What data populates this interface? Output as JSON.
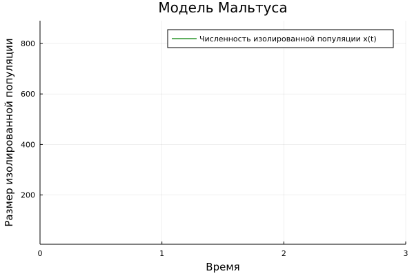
{
  "chart_data": {
    "type": "line",
    "title": "Модель Мальтуса",
    "xlabel": "Время",
    "ylabel": "Размер изолированной популяции",
    "xlim": [
      0,
      3
    ],
    "ylim": [
      5,
      890
    ],
    "x_ticks": [
      0,
      1,
      2,
      3
    ],
    "x_tick_labels": [
      "0",
      "1",
      "2",
      "3"
    ],
    "y_ticks": [
      200,
      400,
      600,
      800
    ],
    "y_tick_labels": [
      "200",
      "400",
      "600",
      "800"
    ],
    "grid": true,
    "legend_position": "top-right",
    "series": [
      {
        "name": "Численность изолированной популяции x(t)",
        "color": "#008000",
        "x": [],
        "y": []
      }
    ]
  }
}
